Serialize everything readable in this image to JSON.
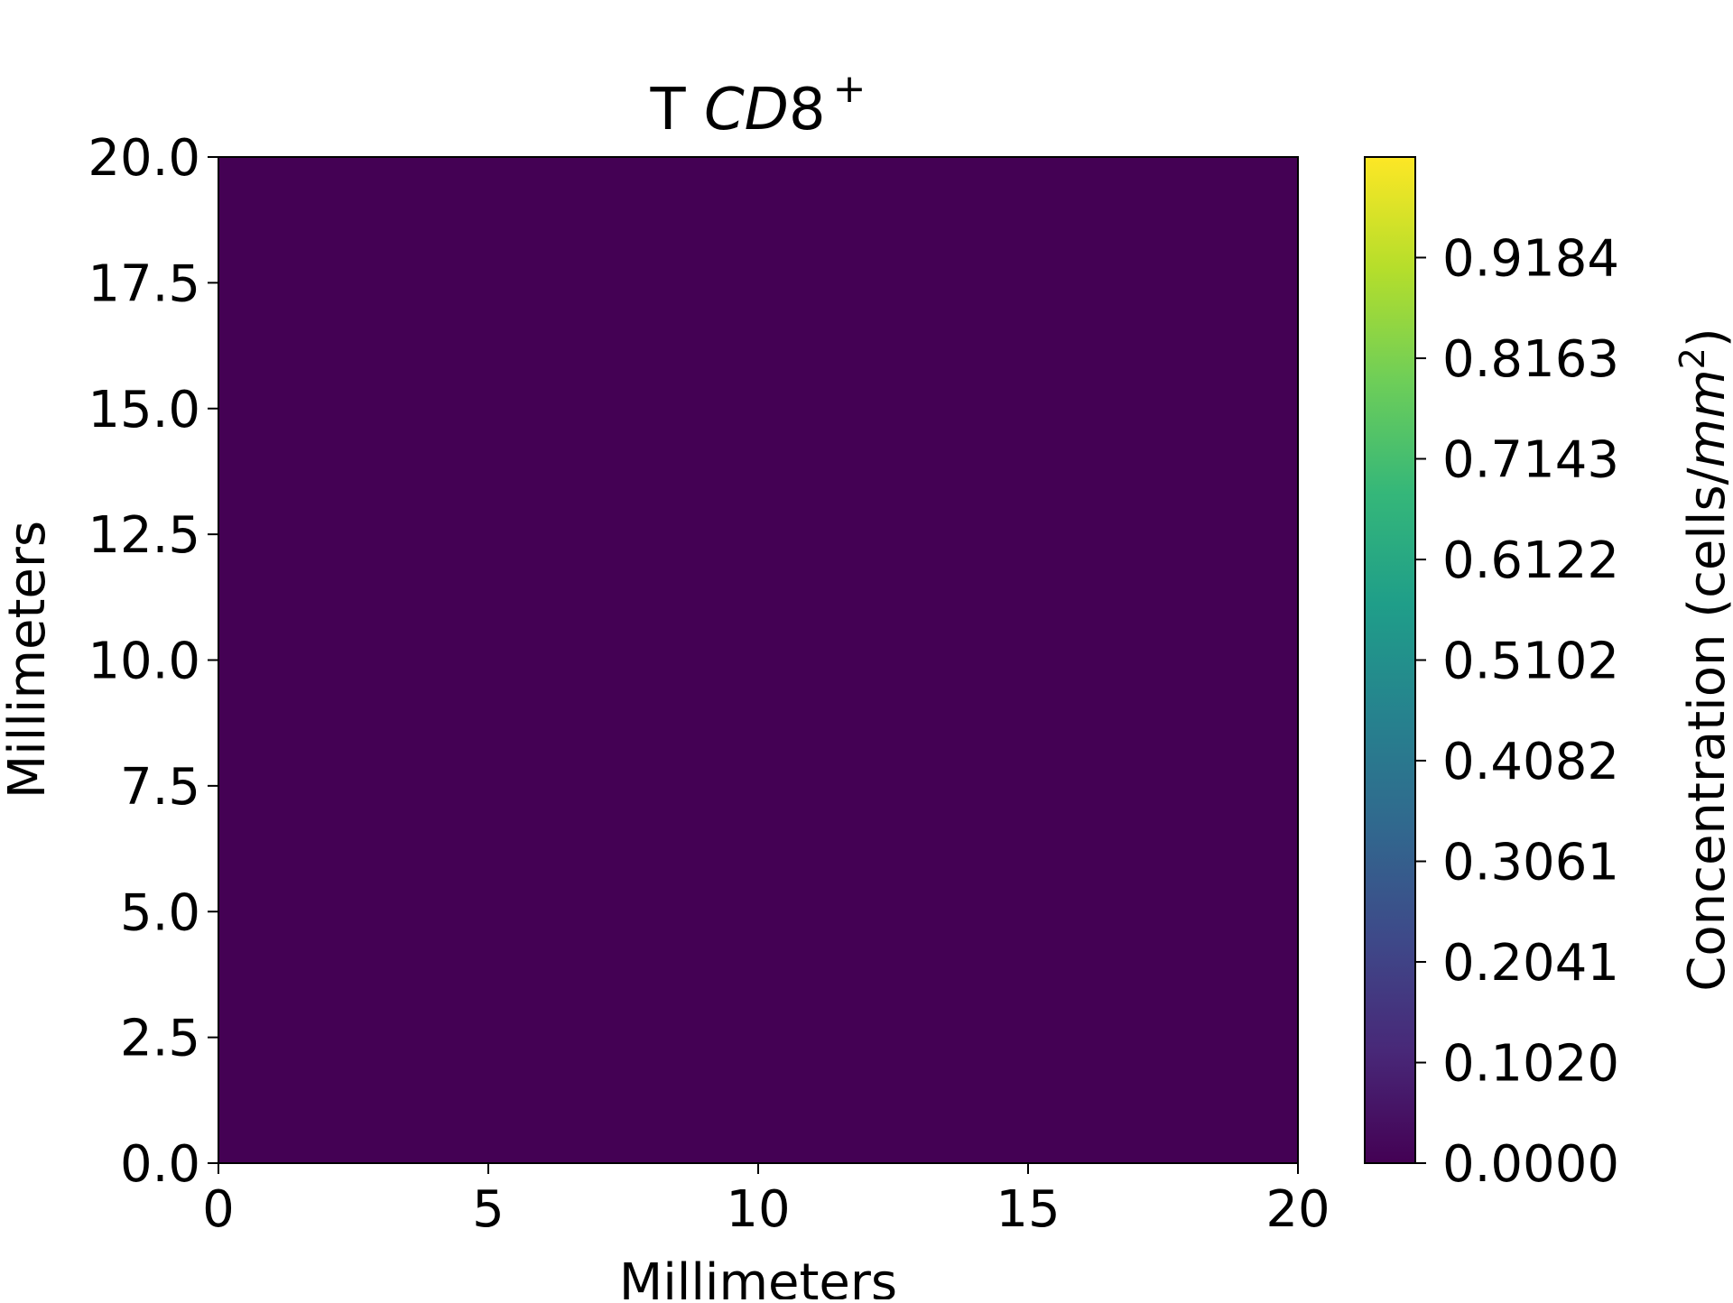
{
  "chart_data": {
    "type": "heatmap",
    "title": {
      "prefix": "T ",
      "italic": "CD",
      "suffix": "8",
      "superscript": "+"
    },
    "xlabel": "Millimeters",
    "ylabel": "Millimeters",
    "xlim": [
      0,
      20
    ],
    "ylim": [
      0,
      20
    ],
    "x_ticks": [
      0,
      5,
      10,
      15,
      20
    ],
    "x_tick_labels": [
      "0",
      "5",
      "10",
      "15",
      "20"
    ],
    "y_ticks": [
      0,
      2.5,
      5,
      7.5,
      10,
      12.5,
      15,
      17.5,
      20
    ],
    "y_tick_labels": [
      "0.0",
      "2.5",
      "5.0",
      "7.5",
      "10.0",
      "12.5",
      "15.0",
      "17.5",
      "20.0"
    ],
    "field_value": 0.0,
    "colormap": "viridis",
    "colorbar": {
      "label": {
        "prefix": "Concentration (cells/",
        "italic": "mm",
        "superscript": "2",
        "suffix": ")"
      },
      "range": [
        0,
        1.0204
      ],
      "ticks": [
        0.0,
        0.102,
        0.2041,
        0.3061,
        0.4082,
        0.5102,
        0.6122,
        0.7143,
        0.8163,
        0.9184
      ],
      "tick_labels": [
        "0.0000",
        "0.1020",
        "0.2041",
        "0.3061",
        "0.4082",
        "0.5102",
        "0.6122",
        "0.7143",
        "0.8163",
        "0.9184"
      ]
    },
    "grid": false,
    "colors": {
      "field": "#440154",
      "viridis_stops": [
        "#440154",
        "#482878",
        "#3e4989",
        "#31688e",
        "#26828e",
        "#1f9e89",
        "#35b779",
        "#6ece58",
        "#b5de2b",
        "#fde725"
      ]
    }
  }
}
